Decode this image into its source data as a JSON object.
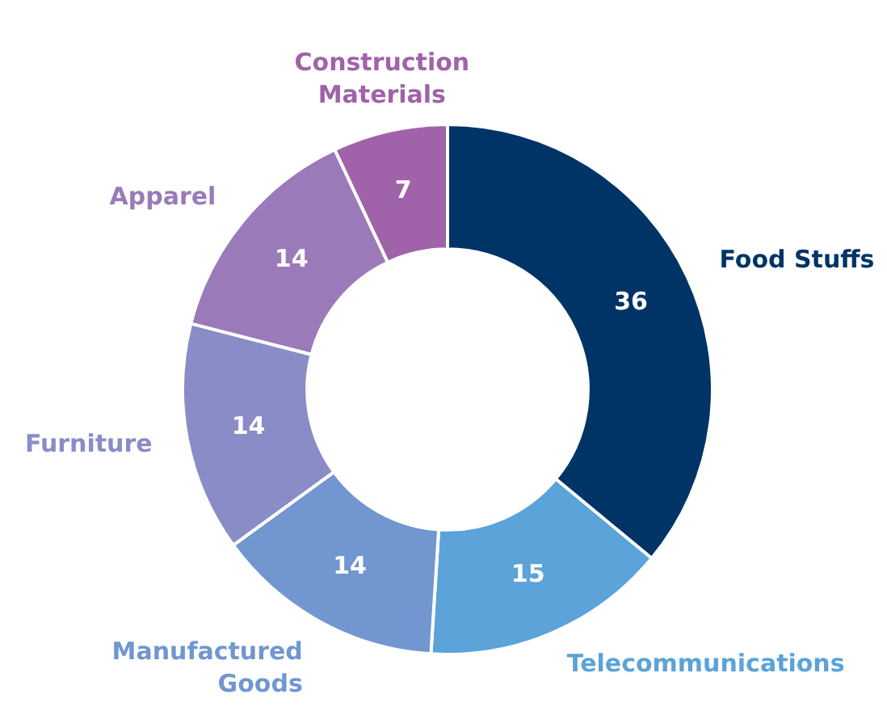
{
  "chart_data": {
    "type": "donut",
    "categories": [
      "Food Stuffs",
      "Telecommunications",
      "Manufactured Goods",
      "Furniture",
      "Apparel",
      "Construction Materials"
    ],
    "values": [
      36,
      15,
      14,
      14,
      14,
      7
    ],
    "colors": [
      "#003466",
      "#5ba3d9",
      "#7196d0",
      "#8a8cc8",
      "#9a7ab8",
      "#a062a8"
    ],
    "data_labels": true,
    "legend": false
  }
}
